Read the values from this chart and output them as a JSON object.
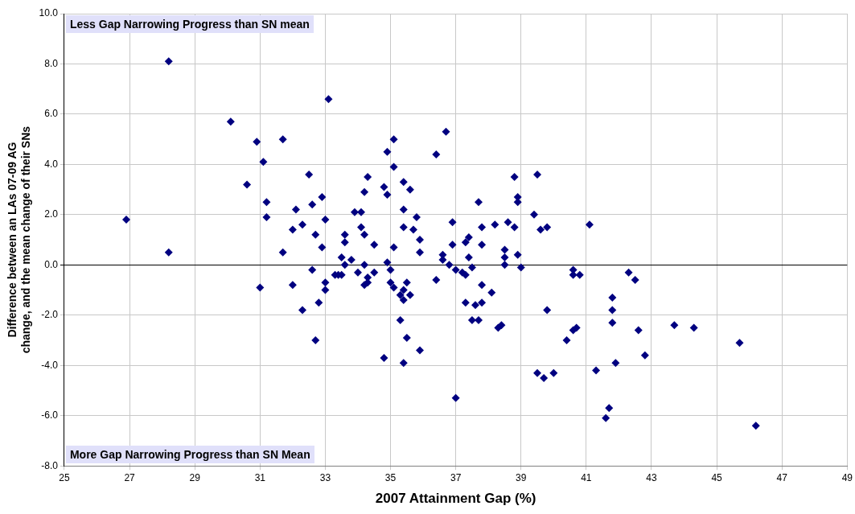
{
  "chart_data": {
    "type": "scatter",
    "xlabel": "2007 Attainment Gap (%)",
    "ylabel": "Difference between an LAs 07-09 AG change, and the mean change of their SNs",
    "annotations": [
      "Less Gap Narrowing Progress than SN mean",
      "More Gap Narrowing Progress than SN Mean"
    ],
    "xlim": [
      25,
      49
    ],
    "xticks": [
      25,
      27,
      29,
      31,
      33,
      35,
      37,
      39,
      41,
      43,
      45,
      47,
      49
    ],
    "ylim": [
      -8,
      10
    ],
    "yticks": [
      {
        "value": -8,
        "label": "-8.0"
      },
      {
        "value": -6,
        "label": "-6.0"
      },
      {
        "value": -4,
        "label": "-4.0"
      },
      {
        "value": -2,
        "label": "-2.0"
      },
      {
        "value": 0,
        "label": "0.0"
      },
      {
        "value": 2,
        "label": "2.0"
      },
      {
        "value": 4,
        "label": "4.0"
      },
      {
        "value": 6,
        "label": "6.0"
      },
      {
        "value": 8,
        "label": "8.0"
      },
      {
        "value": 10,
        "label": "10.0"
      }
    ],
    "grid": true,
    "marker": "diamond",
    "legend": false,
    "series": [
      {
        "color": "#000080",
        "x": [
          28.2,
          26.9,
          28.2,
          30.1,
          30.6,
          30.9,
          31.7,
          31.1,
          32.5,
          31.2,
          31.2,
          32.9,
          32.6,
          32.1,
          33.0,
          32.3,
          32.0,
          32.7,
          32.9,
          31.7,
          32.6,
          33.1,
          36.7,
          35.1,
          34.9,
          36.4,
          35.1,
          34.3,
          38.8,
          39.5,
          35.4,
          35.6,
          34.8,
          34.9,
          34.2,
          38.9,
          38.9,
          37.7,
          35.4,
          33.9,
          34.1,
          39.4,
          35.8,
          36.9,
          38.2,
          38.6,
          41.1,
          34.1,
          35.4,
          37.8,
          38.8,
          39.6,
          39.8,
          34.2,
          35.7,
          33.6,
          33.6,
          35.9,
          34.5,
          37.4,
          37.3,
          36.9,
          37.8,
          35.1,
          35.9,
          38.5,
          33.5,
          33.8,
          36.6,
          36.6,
          37.4,
          38.5,
          38.9,
          33.6,
          34.2,
          34.9,
          36.8,
          38.5,
          39.0,
          35.0,
          37.0,
          37.5,
          40.6,
          40.8,
          40.6,
          33.3,
          33.4,
          33.5,
          34.0,
          34.5,
          37.2,
          37.3,
          31.0,
          32.0,
          33.0,
          33.0,
          32.8,
          32.3,
          32.7,
          34.3,
          34.3,
          34.2,
          35.0,
          35.1,
          35.5,
          35.4,
          35.3,
          35.4,
          35.6,
          36.4,
          37.8,
          38.1,
          37.3,
          37.6,
          37.8,
          37.5,
          37.7,
          38.3,
          38.4,
          35.3,
          35.5,
          35.9,
          34.8,
          35.4,
          37.0,
          39.8,
          39.5,
          39.7,
          40.0,
          40.4,
          40.6,
          40.7,
          42.3,
          42.5,
          41.8,
          41.8,
          41.8,
          42.6,
          43.7,
          44.3,
          45.7,
          42.8,
          41.9,
          41.3,
          41.7,
          41.6,
          46.2
        ],
        "values": [
          8.1,
          1.8,
          0.5,
          5.7,
          3.2,
          4.9,
          5.0,
          4.1,
          3.6,
          2.5,
          1.9,
          2.7,
          2.4,
          2.2,
          1.8,
          1.6,
          1.4,
          1.2,
          0.7,
          0.5,
          -0.2,
          6.6,
          5.3,
          5.0,
          4.5,
          4.4,
          3.9,
          3.5,
          3.5,
          3.6,
          3.3,
          3.0,
          3.1,
          2.8,
          2.9,
          2.7,
          2.5,
          2.5,
          2.2,
          2.1,
          2.1,
          2.0,
          1.9,
          1.7,
          1.6,
          1.7,
          1.6,
          1.5,
          1.5,
          1.5,
          1.5,
          1.4,
          1.5,
          1.2,
          1.4,
          1.2,
          0.9,
          1.0,
          0.8,
          1.1,
          0.9,
          0.8,
          0.8,
          0.7,
          0.5,
          0.6,
          0.3,
          0.2,
          0.4,
          0.2,
          0.3,
          0.3,
          0.4,
          0.0,
          0.0,
          0.1,
          0.0,
          0.0,
          -0.1,
          -0.2,
          -0.2,
          -0.1,
          -0.2,
          -0.4,
          -0.4,
          -0.4,
          -0.4,
          -0.4,
          -0.3,
          -0.3,
          -0.3,
          -0.4,
          -0.9,
          -0.8,
          -0.7,
          -1.0,
          -1.5,
          -1.8,
          -3.0,
          -0.5,
          -0.7,
          -0.8,
          -0.7,
          -0.9,
          -0.7,
          -1.0,
          -1.2,
          -1.4,
          -1.2,
          -0.6,
          -0.8,
          -1.1,
          -1.5,
          -1.6,
          -1.5,
          -2.2,
          -2.2,
          -2.5,
          -2.4,
          -2.2,
          -2.9,
          -3.4,
          -3.7,
          -3.9,
          -5.3,
          -1.8,
          -4.3,
          -4.5,
          -4.3,
          -3.0,
          -2.6,
          -2.5,
          -0.3,
          -0.6,
          -1.3,
          -1.8,
          -2.3,
          -2.6,
          -2.4,
          -2.5,
          -3.1,
          -3.6,
          -3.9,
          -4.2,
          -5.7,
          -6.1,
          -6.4
        ]
      }
    ]
  }
}
